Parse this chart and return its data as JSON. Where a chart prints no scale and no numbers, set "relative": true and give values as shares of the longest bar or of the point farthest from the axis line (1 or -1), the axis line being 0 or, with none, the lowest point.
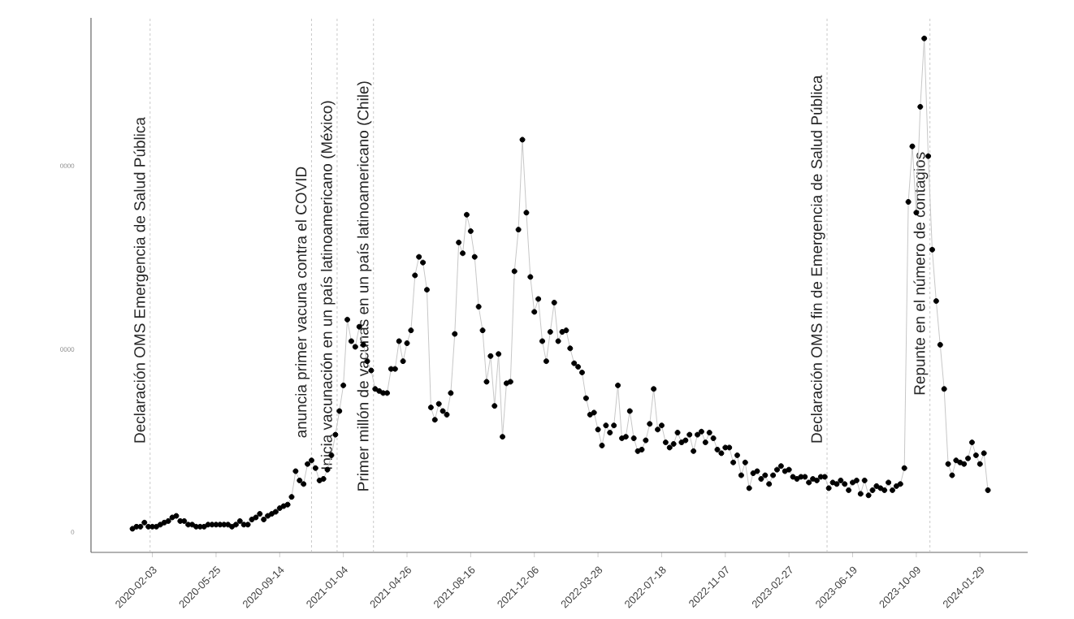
{
  "chart_data": {
    "type": "line",
    "x": [
      "2019-12-30",
      "2020-01-06",
      "2020-01-13",
      "2020-01-20",
      "2020-01-27",
      "2020-02-03",
      "2020-02-10",
      "2020-02-17",
      "2020-02-24",
      "2020-03-02",
      "2020-03-09",
      "2020-03-16",
      "2020-03-23",
      "2020-03-30",
      "2020-04-06",
      "2020-04-13",
      "2020-04-20",
      "2020-04-27",
      "2020-05-04",
      "2020-05-11",
      "2020-05-18",
      "2020-05-25",
      "2020-06-01",
      "2020-06-08",
      "2020-06-15",
      "2020-06-22",
      "2020-06-29",
      "2020-07-06",
      "2020-07-13",
      "2020-07-20",
      "2020-07-27",
      "2020-08-03",
      "2020-08-10",
      "2020-08-17",
      "2020-08-24",
      "2020-08-31",
      "2020-09-07",
      "2020-09-14",
      "2020-09-21",
      "2020-09-28",
      "2020-10-05",
      "2020-10-12",
      "2020-10-19",
      "2020-10-26",
      "2020-11-02",
      "2020-11-09",
      "2020-11-16",
      "2020-11-23",
      "2020-11-30",
      "2020-12-07",
      "2020-12-14",
      "2020-12-21",
      "2020-12-28",
      "2021-01-04",
      "2021-01-11",
      "2021-01-18",
      "2021-01-25",
      "2021-02-01",
      "2021-02-08",
      "2021-02-15",
      "2021-02-22",
      "2021-03-01",
      "2021-03-08",
      "2021-03-15",
      "2021-03-22",
      "2021-03-29",
      "2021-04-05",
      "2021-04-12",
      "2021-04-19",
      "2021-04-26",
      "2021-05-03",
      "2021-05-10",
      "2021-05-17",
      "2021-05-24",
      "2021-05-31",
      "2021-06-07",
      "2021-06-14",
      "2021-06-21",
      "2021-06-28",
      "2021-07-05",
      "2021-07-12",
      "2021-07-19",
      "2021-07-26",
      "2021-08-02",
      "2021-08-09",
      "2021-08-16",
      "2021-08-23",
      "2021-08-30",
      "2021-09-06",
      "2021-09-13",
      "2021-09-20",
      "2021-09-27",
      "2021-10-04",
      "2021-10-11",
      "2021-10-18",
      "2021-10-25",
      "2021-11-01",
      "2021-11-08",
      "2021-11-15",
      "2021-11-22",
      "2021-11-29",
      "2021-12-06",
      "2021-12-13",
      "2021-12-20",
      "2021-12-27",
      "2022-01-03",
      "2022-01-10",
      "2022-01-17",
      "2022-01-24",
      "2022-01-31",
      "2022-02-07",
      "2022-02-14",
      "2022-02-21",
      "2022-02-28",
      "2022-03-07",
      "2022-03-14",
      "2022-03-21",
      "2022-03-28",
      "2022-04-04",
      "2022-04-11",
      "2022-04-18",
      "2022-04-25",
      "2022-05-02",
      "2022-05-09",
      "2022-05-16",
      "2022-05-23",
      "2022-05-30",
      "2022-06-06",
      "2022-06-13",
      "2022-06-20",
      "2022-06-27",
      "2022-07-04",
      "2022-07-11",
      "2022-07-18",
      "2022-07-25",
      "2022-08-01",
      "2022-08-08",
      "2022-08-15",
      "2022-08-22",
      "2022-08-29",
      "2022-09-05",
      "2022-09-12",
      "2022-09-19",
      "2022-09-26",
      "2022-10-03",
      "2022-10-10",
      "2022-10-17",
      "2022-10-24",
      "2022-10-31",
      "2022-11-07",
      "2022-11-14",
      "2022-11-21",
      "2022-11-28",
      "2022-12-05",
      "2022-12-12",
      "2022-12-19",
      "2022-12-26",
      "2023-01-02",
      "2023-01-09",
      "2023-01-16",
      "2023-01-23",
      "2023-01-30",
      "2023-02-06",
      "2023-02-13",
      "2023-02-20",
      "2023-02-27",
      "2023-03-06",
      "2023-03-13",
      "2023-03-20",
      "2023-03-27",
      "2023-04-03",
      "2023-04-10",
      "2023-04-17",
      "2023-04-24",
      "2023-05-01",
      "2023-05-08",
      "2023-05-15",
      "2023-05-22",
      "2023-05-29",
      "2023-06-05",
      "2023-06-12",
      "2023-06-19",
      "2023-06-26",
      "2023-07-03",
      "2023-07-10",
      "2023-07-17",
      "2023-07-24",
      "2023-07-31",
      "2023-08-07",
      "2023-08-14",
      "2023-08-21",
      "2023-08-28",
      "2023-09-04",
      "2023-09-11",
      "2023-09-18",
      "2023-09-25",
      "2023-10-02",
      "2023-10-09",
      "2023-10-16",
      "2023-10-23",
      "2023-10-30",
      "2023-11-06",
      "2023-11-13",
      "2023-11-20",
      "2023-11-27",
      "2023-12-04",
      "2023-12-11",
      "2023-12-18",
      "2023-12-25",
      "2024-01-01",
      "2024-01-08",
      "2024-01-15",
      "2024-01-22",
      "2024-01-29",
      "2024-02-05",
      "2024-02-12"
    ],
    "series": [
      {
        "color": "#000000",
        "values": [
          0.046,
          0.05,
          0.05,
          0.058,
          0.05,
          0.05,
          0.05,
          0.054,
          0.058,
          0.061,
          0.068,
          0.071,
          0.061,
          0.061,
          0.054,
          0.054,
          0.05,
          0.05,
          0.05,
          0.054,
          0.054,
          0.054,
          0.054,
          0.054,
          0.054,
          0.05,
          0.054,
          0.061,
          0.054,
          0.054,
          0.064,
          0.068,
          0.075,
          0.064,
          0.071,
          0.075,
          0.079,
          0.086,
          0.09,
          0.093,
          0.108,
          0.158,
          0.14,
          0.133,
          0.172,
          0.179,
          0.164,
          0.14,
          0.143,
          0.161,
          0.189,
          0.229,
          0.275,
          0.325,
          0.453,
          0.411,
          0.4,
          0.439,
          0.404,
          0.372,
          0.354,
          0.318,
          0.314,
          0.31,
          0.31,
          0.357,
          0.357,
          0.411,
          0.372,
          0.407,
          0.432,
          0.539,
          0.575,
          0.564,
          0.511,
          0.282,
          0.258,
          0.289,
          0.275,
          0.268,
          0.31,
          0.425,
          0.603,
          0.582,
          0.657,
          0.625,
          0.575,
          0.478,
          0.432,
          0.332,
          0.382,
          0.285,
          0.386,
          0.225,
          0.329,
          0.332,
          0.547,
          0.628,
          0.803,
          0.661,
          0.536,
          0.468,
          0.493,
          0.411,
          0.372,
          0.429,
          0.486,
          0.411,
          0.429,
          0.432,
          0.397,
          0.368,
          0.361,
          0.35,
          0.3,
          0.268,
          0.272,
          0.239,
          0.208,
          0.247,
          0.233,
          0.247,
          0.325,
          0.222,
          0.225,
          0.275,
          0.222,
          0.197,
          0.2,
          0.218,
          0.25,
          0.318,
          0.239,
          0.247,
          0.214,
          0.204,
          0.211,
          0.233,
          0.214,
          0.218,
          0.229,
          0.197,
          0.229,
          0.235,
          0.214,
          0.233,
          0.222,
          0.2,
          0.193,
          0.204,
          0.204,
          0.175,
          0.189,
          0.15,
          0.175,
          0.125,
          0.154,
          0.158,
          0.143,
          0.15,
          0.133,
          0.15,
          0.161,
          0.168,
          0.158,
          0.161,
          0.147,
          0.143,
          0.147,
          0.147,
          0.136,
          0.143,
          0.14,
          0.147,
          0.147,
          0.125,
          0.136,
          0.133,
          0.14,
          0.133,
          0.121,
          0.136,
          0.14,
          0.114,
          0.14,
          0.111,
          0.121,
          0.129,
          0.125,
          0.121,
          0.136,
          0.121,
          0.129,
          0.133,
          0.164,
          0.682,
          0.79,
          0.661,
          0.867,
          1,
          0.771,
          0.589,
          0.489,
          0.404,
          0.318,
          0.172,
          0.15,
          0.179,
          0.175,
          0.172,
          0.183,
          0.214,
          0.189,
          0.172,
          0.193,
          0.121
        ]
      }
    ],
    "relative": true,
    "annotations": [
      "0",
      "0000",
      "0000"
    ],
    "xlim": [
      "2019-10-18",
      "2024-04-22"
    ],
    "xticks": [
      "2020-02-03",
      "2020-05-25",
      "2020-09-14",
      "2021-01-04",
      "2021-04-26",
      "2021-08-16",
      "2021-12-06",
      "2022-03-28",
      "2022-07-18",
      "2022-11-07",
      "2023-02-27",
      "2023-06-19",
      "2023-10-09",
      "2024-01-29"
    ],
    "marker": "circle",
    "line_style": "solid",
    "ref_lines": [
      {
        "axis": "x",
        "value": "2020-01-30",
        "label": "Declaración OMS Emergencia de Salud Pública",
        "color": "#bbbbbb",
        "line_style": "dashed"
      },
      {
        "axis": "x",
        "value": "2020-11-09",
        "label": "anuncia primer vacuna contra el COVID",
        "color": "#bbbbbb",
        "line_style": "dashed"
      },
      {
        "axis": "x",
        "value": "2020-12-24",
        "label": "Inicia vacunación en un país latinoamericano (México)",
        "color": "#bbbbbb",
        "line_style": "dashed"
      },
      {
        "axis": "x",
        "value": "2021-02-26",
        "label": "Primer millón de vacunas en un país latinoamericano (Chile)",
        "color": "#bbbbbb",
        "line_style": "dashed"
      },
      {
        "axis": "x",
        "value": "2023-05-05",
        "label": "Declaración OMS fin de Emergencia de Salud Pública",
        "color": "#bbbbbb",
        "line_style": "dashed"
      },
      {
        "axis": "x",
        "value": "2023-11-02",
        "label": "Repunte en el número de contagios",
        "color": "#bbbbbb",
        "line_style": "dashed"
      }
    ]
  }
}
